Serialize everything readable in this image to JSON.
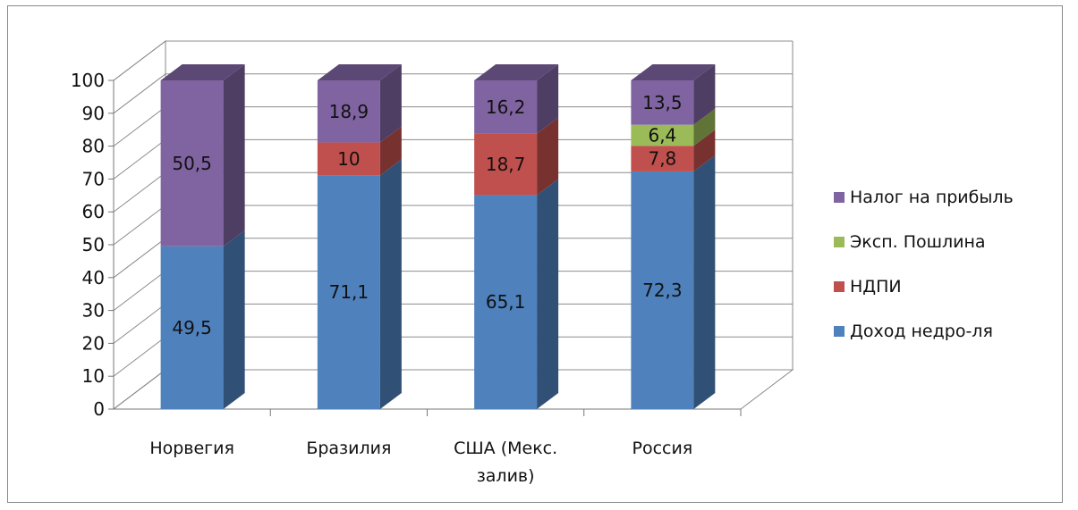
{
  "chart_data": {
    "type": "bar",
    "stacked": true,
    "three_d": true,
    "categories": [
      "Норвегия",
      "Бразилия",
      "США (Мекс. залив)",
      "Россия"
    ],
    "category_lines": [
      [
        "Норвегия"
      ],
      [
        "Бразилия"
      ],
      [
        "США (Мекс.",
        "залив)"
      ],
      [
        "Россия"
      ]
    ],
    "series": [
      {
        "name": "Доход недро-ля",
        "values": [
          49.5,
          71.1,
          65.1,
          72.3
        ],
        "labels": [
          "49,5",
          "71,1",
          "65,1",
          "72,3"
        ],
        "color": "#4f81bd"
      },
      {
        "name": "НДПИ",
        "values": [
          0,
          10,
          18.7,
          7.8
        ],
        "labels": [
          "",
          "10",
          "18,7",
          "7,8"
        ],
        "color": "#c0504d"
      },
      {
        "name": "Эксп. Пошлина",
        "values": [
          0,
          0,
          0,
          6.4
        ],
        "labels": [
          "",
          "",
          "",
          "6,4"
        ],
        "color": "#9bbb59"
      },
      {
        "name": "Налог на прибыль",
        "values": [
          50.5,
          18.9,
          16.2,
          13.5
        ],
        "labels": [
          "50,5",
          "18,9",
          "16,2",
          "13,5"
        ],
        "color": "#8064a2"
      }
    ],
    "legend_order": [
      3,
      2,
      1,
      0
    ],
    "y_ticks": [
      "0",
      "10",
      "20",
      "30",
      "40",
      "50",
      "60",
      "70",
      "80",
      "90",
      "100"
    ],
    "ylim": [
      0,
      100
    ],
    "grid": true,
    "legend_position": "right",
    "title": "",
    "xlabel": "",
    "ylabel": ""
  }
}
